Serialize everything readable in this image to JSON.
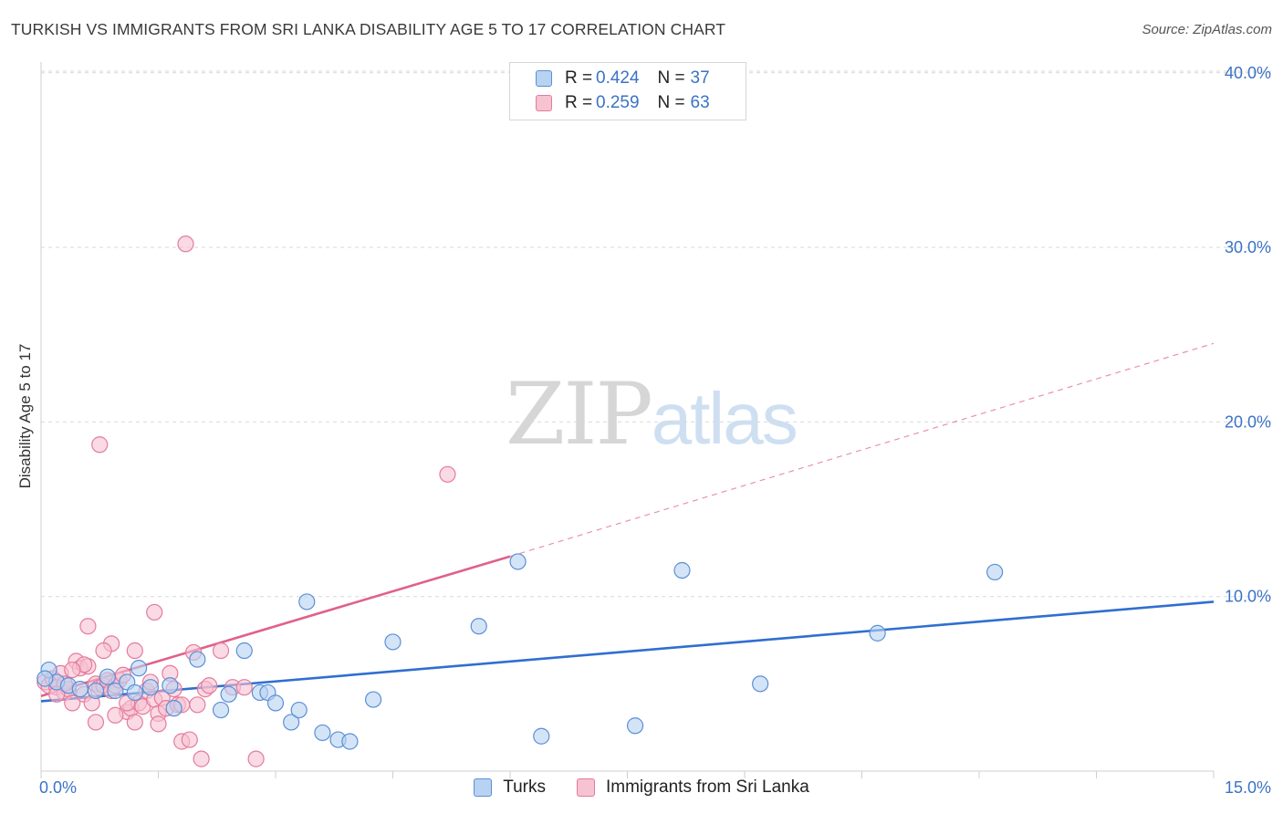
{
  "header": {
    "title": "TURKISH VS IMMIGRANTS FROM SRI LANKA DISABILITY AGE 5 TO 17 CORRELATION CHART",
    "source": "Source: ZipAtlas.com"
  },
  "watermark": {
    "zip": "ZIP",
    "atlas": "atlas"
  },
  "colors": {
    "turks_fill": "#b8d2f2",
    "turks_stroke": "#5b8fd6",
    "turks_line": "#2f6fd0",
    "srilanka_fill": "#f7c2d2",
    "srilanka_stroke": "#e57b9c",
    "srilanka_line": "#e0618b",
    "grid": "#d9d9d9",
    "tick_text": "#3b72c6"
  },
  "legend": {
    "rows": [
      {
        "r_label": "R =",
        "r_value": "0.424",
        "n_label": "N =",
        "n_value": "37"
      },
      {
        "r_label": "R =",
        "r_value": "0.259",
        "n_label": "N =",
        "n_value": "63"
      }
    ]
  },
  "bottom_legend": {
    "turks": "Turks",
    "srilanka": "Immigrants from Sri Lanka"
  },
  "chart_data": {
    "type": "scatter",
    "title": "TURKISH VS IMMIGRANTS FROM SRI LANKA DISABILITY AGE 5 TO 17 CORRELATION CHART",
    "xlabel": "",
    "ylabel": "Disability Age 5 to 17",
    "xlim": [
      0,
      15
    ],
    "ylim": [
      0,
      42
    ],
    "x_tick_labels": [
      "0.0%",
      "15.0%"
    ],
    "y_ticks": [
      10,
      20,
      30,
      40
    ],
    "y_tick_labels": [
      "10.0%",
      "20.0%",
      "30.0%",
      "40.0%"
    ],
    "grid": true,
    "series": [
      {
        "name": "Turks",
        "r": 0.424,
        "n": 37,
        "trend": {
          "x": [
            0,
            15
          ],
          "y": [
            4.0,
            9.7
          ],
          "style": "solid"
        },
        "points": [
          [
            0.1,
            5.8
          ],
          [
            0.2,
            5.1
          ],
          [
            0.35,
            4.9
          ],
          [
            0.5,
            4.7
          ],
          [
            0.7,
            4.6
          ],
          [
            0.85,
            5.4
          ],
          [
            0.95,
            4.6
          ],
          [
            1.1,
            5.1
          ],
          [
            1.2,
            4.5
          ],
          [
            1.25,
            5.9
          ],
          [
            1.4,
            4.8
          ],
          [
            1.65,
            4.9
          ],
          [
            1.7,
            3.6
          ],
          [
            2.0,
            6.4
          ],
          [
            2.3,
            3.5
          ],
          [
            2.4,
            4.4
          ],
          [
            2.6,
            6.9
          ],
          [
            2.8,
            4.5
          ],
          [
            2.9,
            4.5
          ],
          [
            3.0,
            3.9
          ],
          [
            3.2,
            2.8
          ],
          [
            3.3,
            3.5
          ],
          [
            3.4,
            9.7
          ],
          [
            3.6,
            2.2
          ],
          [
            3.8,
            1.8
          ],
          [
            3.95,
            1.7
          ],
          [
            4.25,
            4.1
          ],
          [
            4.5,
            7.4
          ],
          [
            5.6,
            8.3
          ],
          [
            6.1,
            12.0
          ],
          [
            6.4,
            2.0
          ],
          [
            7.6,
            2.6
          ],
          [
            8.2,
            11.5
          ],
          [
            9.2,
            5.0
          ],
          [
            10.7,
            7.9
          ],
          [
            12.2,
            11.4
          ],
          [
            0.05,
            5.3
          ]
        ]
      },
      {
        "name": "Immigrants from Sri Lanka",
        "r": 0.259,
        "n": 63,
        "trend": {
          "x": [
            0,
            6.0
          ],
          "y": [
            4.3,
            12.3
          ],
          "style": "solid"
        },
        "trend_extension": {
          "x": [
            6.0,
            15
          ],
          "y": [
            12.3,
            24.5
          ],
          "style": "dashed"
        },
        "points": [
          [
            0.05,
            5.1
          ],
          [
            0.1,
            4.9
          ],
          [
            0.15,
            5.3
          ],
          [
            0.2,
            4.8
          ],
          [
            0.25,
            5.6
          ],
          [
            0.3,
            4.5
          ],
          [
            0.35,
            4.7
          ],
          [
            0.4,
            3.9
          ],
          [
            0.45,
            6.3
          ],
          [
            0.5,
            5.9
          ],
          [
            0.55,
            4.4
          ],
          [
            0.6,
            6.0
          ],
          [
            0.65,
            3.9
          ],
          [
            0.7,
            5.0
          ],
          [
            0.75,
            4.8
          ],
          [
            0.8,
            4.9
          ],
          [
            0.85,
            5.2
          ],
          [
            0.9,
            4.6
          ],
          [
            0.95,
            4.9
          ],
          [
            1.0,
            5.2
          ],
          [
            1.05,
            5.5
          ],
          [
            1.1,
            3.4
          ],
          [
            1.15,
            3.6
          ],
          [
            1.2,
            2.8
          ],
          [
            1.25,
            3.9
          ],
          [
            1.3,
            3.7
          ],
          [
            1.35,
            4.6
          ],
          [
            1.4,
            5.1
          ],
          [
            1.45,
            4.1
          ],
          [
            1.5,
            3.3
          ],
          [
            1.55,
            4.2
          ],
          [
            1.6,
            3.6
          ],
          [
            1.65,
            5.6
          ],
          [
            1.7,
            4.7
          ],
          [
            1.75,
            3.8
          ],
          [
            1.8,
            1.7
          ],
          [
            1.9,
            1.8
          ],
          [
            1.95,
            6.8
          ],
          [
            2.0,
            3.8
          ],
          [
            2.05,
            0.7
          ],
          [
            2.1,
            4.7
          ],
          [
            2.15,
            4.9
          ],
          [
            2.3,
            6.9
          ],
          [
            2.45,
            4.8
          ],
          [
            2.6,
            4.8
          ],
          [
            2.75,
            0.7
          ],
          [
            0.6,
            8.3
          ],
          [
            0.9,
            7.3
          ],
          [
            1.2,
            6.9
          ],
          [
            1.45,
            9.1
          ],
          [
            0.8,
            6.9
          ],
          [
            1.8,
            3.8
          ],
          [
            0.7,
            2.8
          ],
          [
            0.95,
            3.2
          ],
          [
            1.1,
            3.9
          ],
          [
            1.5,
            2.7
          ],
          [
            0.3,
            5.0
          ],
          [
            0.2,
            4.4
          ],
          [
            0.55,
            6.1
          ],
          [
            0.75,
            18.7
          ],
          [
            1.85,
            30.2
          ],
          [
            5.2,
            17.0
          ],
          [
            0.4,
            5.8
          ]
        ]
      }
    ]
  }
}
